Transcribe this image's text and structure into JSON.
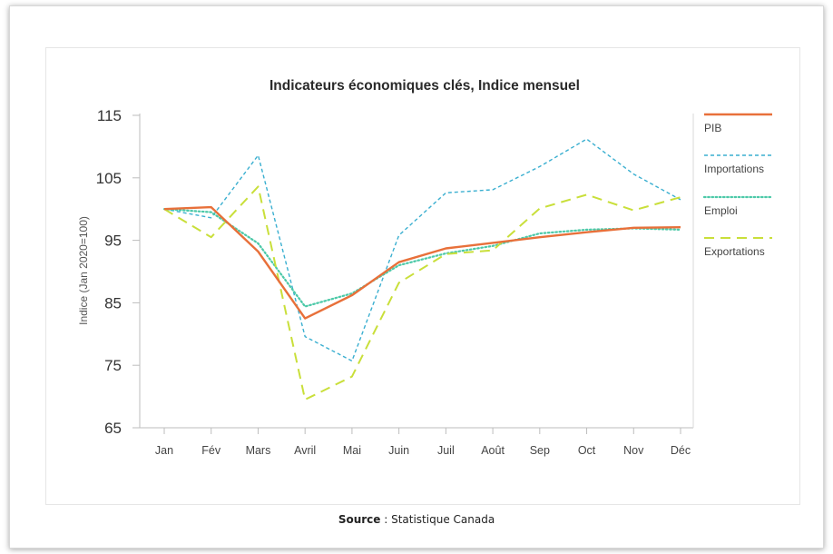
{
  "source": {
    "label": "Source",
    "separator": " : ",
    "text": "Statistique Canada"
  },
  "chart_data": {
    "type": "line",
    "title": "Indicateurs économiques clés, Indice mensuel",
    "xlabel": "",
    "ylabel": "Indice (Jan 2020=100)",
    "categories": [
      "Jan",
      "Fév",
      "Mars",
      "Avril",
      "Mai",
      "Juin",
      "Juil",
      "Août",
      "Sep",
      "Oct",
      "Nov",
      "Déc"
    ],
    "ylim": [
      65,
      115
    ],
    "yticks": [
      65,
      75,
      85,
      95,
      105,
      115
    ],
    "grid": false,
    "legend_position": "right",
    "series": [
      {
        "name": "PIB",
        "color": "#e8703a",
        "style": "solid",
        "values": [
          100,
          100.3,
          93.2,
          82.5,
          86.2,
          91.5,
          93.7,
          94.6,
          95.5,
          96.3,
          97.0,
          97.1
        ]
      },
      {
        "name": "Importations",
        "color": "#3aafd0",
        "style": "dashed",
        "values": [
          100,
          98.6,
          108.6,
          79.6,
          75.7,
          95.8,
          102.6,
          103.1,
          106.8,
          111.2,
          105.6,
          101.5
        ]
      },
      {
        "name": "Emploi",
        "color": "#4cc9a8",
        "style": "dotted",
        "values": [
          100,
          99.5,
          94.5,
          84.4,
          86.5,
          91.0,
          92.9,
          94.1,
          96.1,
          96.7,
          96.9,
          96.7
        ]
      },
      {
        "name": "Exportations",
        "color": "#c9df3a",
        "style": "longdash",
        "values": [
          100,
          95.5,
          103.6,
          69.5,
          73.2,
          88.2,
          92.8,
          93.4,
          100.1,
          102.3,
          99.8,
          101.9
        ]
      }
    ]
  }
}
